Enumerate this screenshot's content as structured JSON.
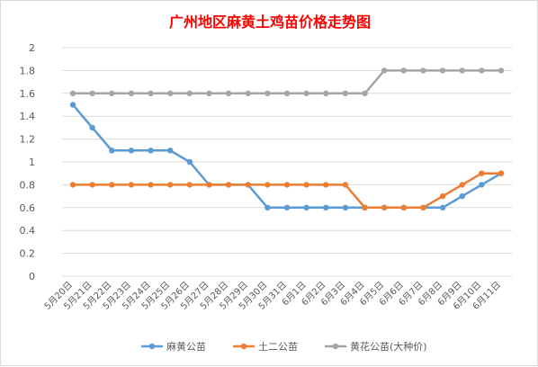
{
  "chart_data": {
    "type": "line",
    "title": "广州地区麻黄土鸡苗价格走势图",
    "xlabel": "",
    "ylabel": "",
    "ylim": [
      0,
      2
    ],
    "yticks": [
      "0",
      "0.2",
      "0.4",
      "0.6",
      "0.8",
      "1",
      "1.2",
      "1.4",
      "1.6",
      "1.8",
      "2"
    ],
    "grid": true,
    "legend_position": "bottom",
    "categories": [
      "5月20日",
      "5月21日",
      "5月22日",
      "5月23日",
      "5月24日",
      "5月25日",
      "5月26日",
      "5月27日",
      "5月28日",
      "5月29日",
      "5月30日",
      "5月31日",
      "6月1日",
      "6月2日",
      "6月3日",
      "6月4日",
      "6月5日",
      "6月6日",
      "6月7日",
      "6月8日",
      "6月9日",
      "6月10日",
      "6月11日"
    ],
    "series": [
      {
        "name": "麻黄公苗",
        "color": "#5b9bd5",
        "values": [
          1.5,
          1.3,
          1.1,
          1.1,
          1.1,
          1.1,
          1.0,
          0.8,
          0.8,
          0.8,
          0.6,
          0.6,
          0.6,
          0.6,
          0.6,
          0.6,
          0.6,
          0.6,
          0.6,
          0.6,
          0.7,
          0.8,
          0.9
        ]
      },
      {
        "name": "土二公苗",
        "color": "#ed7d31",
        "values": [
          0.8,
          0.8,
          0.8,
          0.8,
          0.8,
          0.8,
          0.8,
          0.8,
          0.8,
          0.8,
          0.8,
          0.8,
          0.8,
          0.8,
          0.8,
          0.6,
          0.6,
          0.6,
          0.6,
          0.7,
          0.8,
          0.9,
          0.9
        ]
      },
      {
        "name": "黄花公苗(大种价)",
        "color": "#a5a5a5",
        "values": [
          1.6,
          1.6,
          1.6,
          1.6,
          1.6,
          1.6,
          1.6,
          1.6,
          1.6,
          1.6,
          1.6,
          1.6,
          1.6,
          1.6,
          1.6,
          1.6,
          1.8,
          1.8,
          1.8,
          1.8,
          1.8,
          1.8,
          1.8
        ]
      }
    ]
  }
}
